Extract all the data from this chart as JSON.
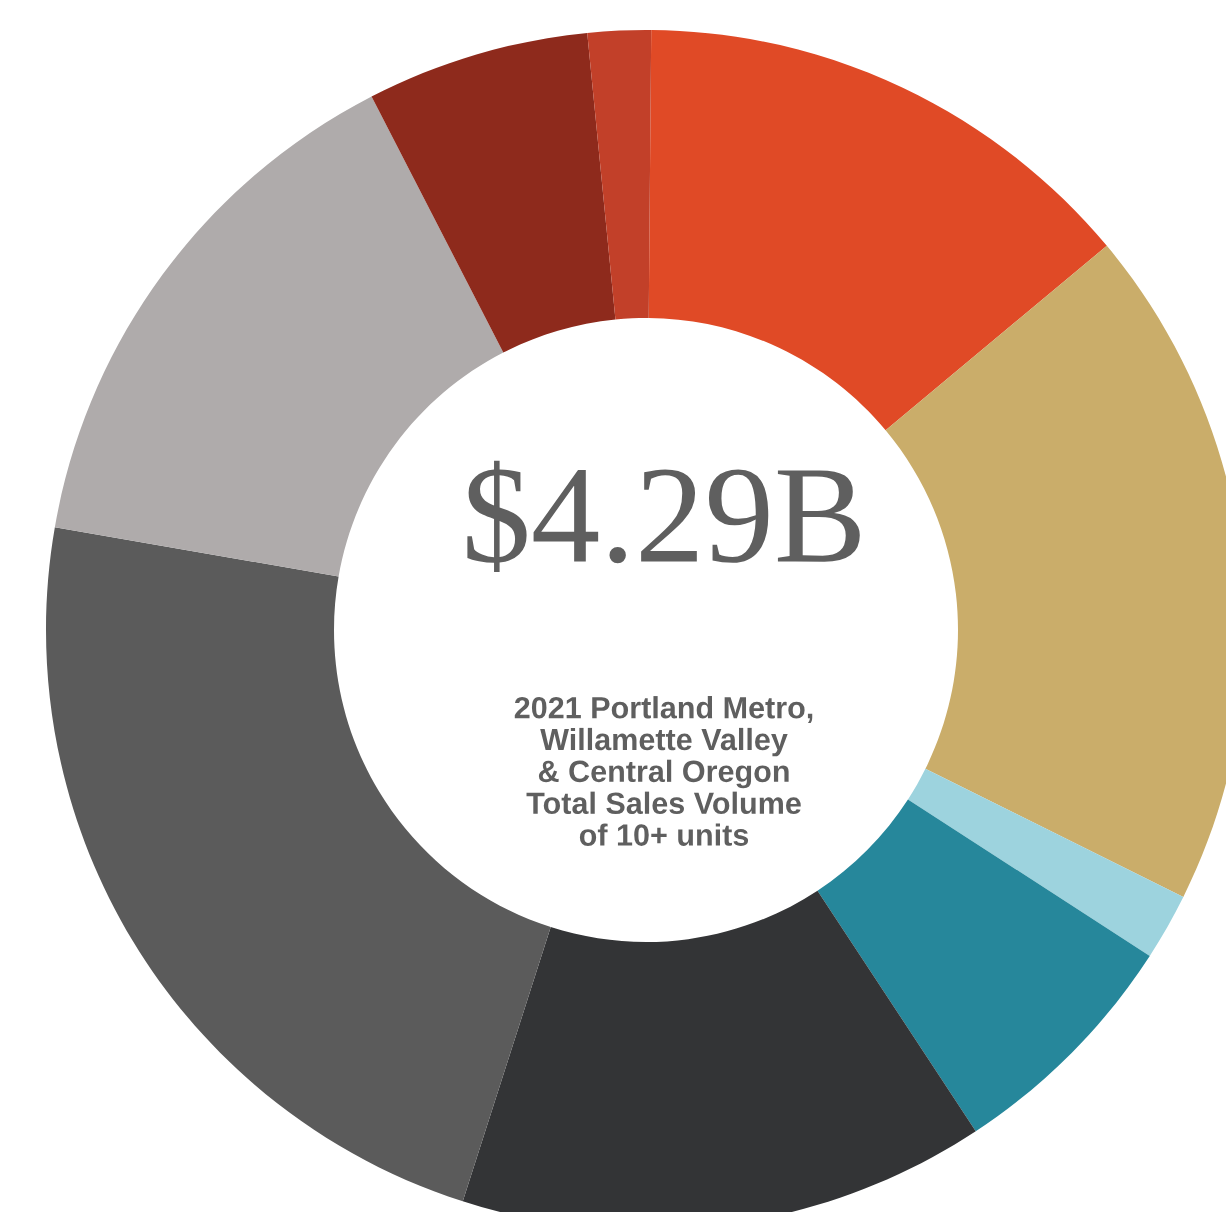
{
  "chart_data": {
    "type": "donut",
    "title": "$4.29B",
    "subtitle": "2021 Portland Metro,\nWillamette Valley\n& Central Oregon\nTotal Sales Volume\nof 10+ units",
    "categories": [
      null,
      null,
      null,
      null,
      null,
      null,
      null,
      null,
      null
    ],
    "values": [
      13.8,
      18.4,
      1.8,
      6.6,
      14.2,
      22.8,
      14.7,
      6.0,
      1.7
    ],
    "colors": [
      "#e04a26",
      "#caad6a",
      "#9dd3de",
      "#26879b",
      "#333436",
      "#5b5b5b",
      "#afabab",
      "#8e2a1c",
      "#c24029"
    ]
  }
}
